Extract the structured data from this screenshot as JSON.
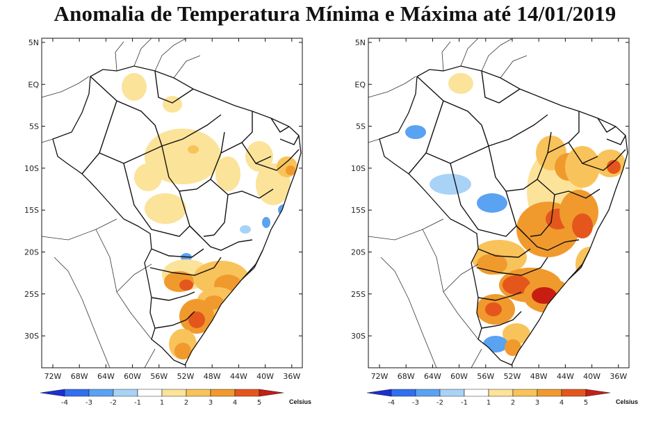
{
  "title": "Anomalia de Temperatura Mínima e Máxima até 14/01/2019",
  "panels": [
    {
      "id": "minima"
    },
    {
      "id": "maxima"
    }
  ],
  "axes": {
    "lat_labels": [
      "5N",
      "EQ",
      "5S",
      "10S",
      "15S",
      "20S",
      "25S",
      "30S"
    ],
    "lon_labels": [
      "72W",
      "68W",
      "64W",
      "60W",
      "56W",
      "52W",
      "48W",
      "44W",
      "40W",
      "36W"
    ]
  },
  "colorbar": {
    "labels": [
      "-4",
      "-3",
      "-2",
      "-1",
      "1",
      "2",
      "3",
      "4",
      "5"
    ],
    "unit": "Celsius",
    "colors": [
      "#1a2fd6",
      "#2f6ff0",
      "#5aa2f2",
      "#a9d2f7",
      "#ffffff",
      "#fbe39a",
      "#f8c35a",
      "#f09a2e",
      "#e5561c",
      "#c81e12"
    ]
  }
}
